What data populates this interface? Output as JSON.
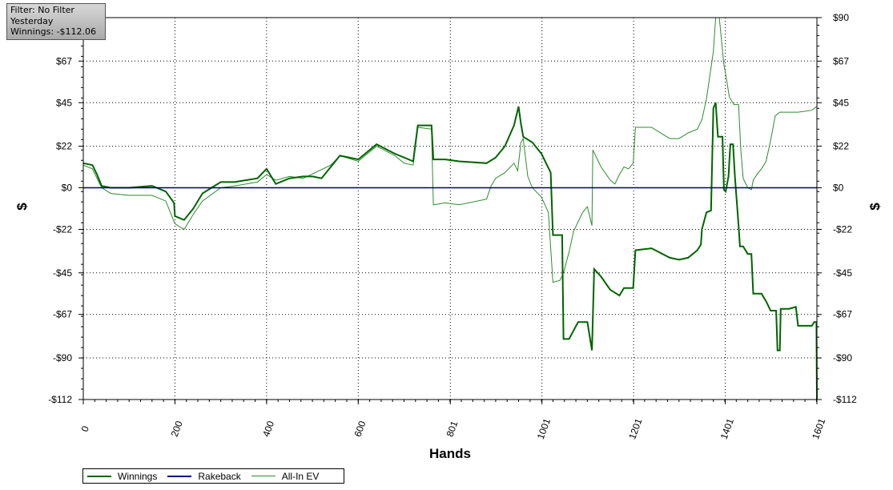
{
  "filter_box": {
    "line1": "Filter: No Filter",
    "line2": "Yesterday",
    "line3": "Winnings: -$112.06"
  },
  "chart_data": {
    "type": "line",
    "xlabel": "Hands",
    "ylabel": "$",
    "ylim": [
      -112,
      90
    ],
    "xlim": [
      0,
      1601
    ],
    "x_ticks": [
      0,
      200,
      400,
      600,
      801,
      1001,
      1201,
      1401,
      1601
    ],
    "y_ticks": [
      {
        "value": 90,
        "label": "$90"
      },
      {
        "value": 67,
        "label": "$67"
      },
      {
        "value": 45,
        "label": "$45"
      },
      {
        "value": 22,
        "label": "$22"
      },
      {
        "value": 0,
        "label": "$0"
      },
      {
        "value": -22,
        "label": "-$22"
      },
      {
        "value": -45,
        "label": "-$45"
      },
      {
        "value": -67,
        "label": "-$67"
      },
      {
        "value": -90,
        "label": "-$90"
      },
      {
        "value": -112,
        "label": "-$112"
      }
    ],
    "grid": true,
    "legend_position": "bottom-left",
    "series": [
      {
        "name": "Winnings",
        "color": "#006400",
        "width": 2,
        "points": [
          [
            0,
            13
          ],
          [
            20,
            12
          ],
          [
            30,
            7
          ],
          [
            40,
            1
          ],
          [
            60,
            0
          ],
          [
            100,
            0
          ],
          [
            150,
            1
          ],
          [
            180,
            -2
          ],
          [
            198,
            -8
          ],
          [
            200,
            -15
          ],
          [
            220,
            -17
          ],
          [
            240,
            -11
          ],
          [
            260,
            -3
          ],
          [
            300,
            3
          ],
          [
            330,
            3
          ],
          [
            380,
            5
          ],
          [
            400,
            10
          ],
          [
            420,
            2
          ],
          [
            450,
            5
          ],
          [
            480,
            6
          ],
          [
            500,
            6
          ],
          [
            520,
            5
          ],
          [
            540,
            11
          ],
          [
            560,
            17
          ],
          [
            600,
            15
          ],
          [
            640,
            23
          ],
          [
            680,
            18
          ],
          [
            700,
            16
          ],
          [
            720,
            14
          ],
          [
            730,
            33
          ],
          [
            760,
            33
          ],
          [
            764,
            15
          ],
          [
            790,
            15
          ],
          [
            820,
            14
          ],
          [
            880,
            13
          ],
          [
            900,
            16
          ],
          [
            920,
            22
          ],
          [
            940,
            33
          ],
          [
            950,
            43
          ],
          [
            955,
            34
          ],
          [
            960,
            27
          ],
          [
            980,
            24
          ],
          [
            1000,
            18
          ],
          [
            1020,
            8
          ],
          [
            1025,
            -25
          ],
          [
            1045,
            -25
          ],
          [
            1048,
            -80
          ],
          [
            1060,
            -80
          ],
          [
            1080,
            -71
          ],
          [
            1100,
            -71
          ],
          [
            1110,
            -86
          ],
          [
            1115,
            -43
          ],
          [
            1130,
            -47
          ],
          [
            1150,
            -54
          ],
          [
            1170,
            -57
          ],
          [
            1180,
            -53
          ],
          [
            1200,
            -53
          ],
          [
            1205,
            -33
          ],
          [
            1240,
            -32
          ],
          [
            1280,
            -37
          ],
          [
            1300,
            -38
          ],
          [
            1320,
            -37
          ],
          [
            1340,
            -33
          ],
          [
            1348,
            -30
          ],
          [
            1350,
            -22
          ],
          [
            1360,
            -13
          ],
          [
            1370,
            -12
          ],
          [
            1375,
            42
          ],
          [
            1380,
            45
          ],
          [
            1385,
            27
          ],
          [
            1395,
            27
          ],
          [
            1398,
            -1
          ],
          [
            1402,
            -2
          ],
          [
            1408,
            6
          ],
          [
            1412,
            23
          ],
          [
            1418,
            23
          ],
          [
            1422,
            6
          ],
          [
            1430,
            -20
          ],
          [
            1433,
            -31
          ],
          [
            1440,
            -31
          ],
          [
            1450,
            -35
          ],
          [
            1458,
            -35
          ],
          [
            1462,
            -56
          ],
          [
            1480,
            -56
          ],
          [
            1490,
            -60
          ],
          [
            1500,
            -65
          ],
          [
            1512,
            -65
          ],
          [
            1515,
            -86
          ],
          [
            1520,
            -86
          ],
          [
            1522,
            -64
          ],
          [
            1540,
            -64
          ],
          [
            1555,
            -63
          ],
          [
            1560,
            -73
          ],
          [
            1590,
            -73
          ],
          [
            1595,
            -71
          ],
          [
            1600,
            -71
          ],
          [
            1601,
            -112
          ]
        ]
      },
      {
        "name": "Rakeback",
        "color": "#000080",
        "width": 1.5,
        "points": [
          [
            0,
            0
          ],
          [
            1601,
            0
          ]
        ]
      },
      {
        "name": "All-In EV",
        "color": "#2e8b2e",
        "width": 1,
        "points": [
          [
            0,
            12
          ],
          [
            20,
            10
          ],
          [
            40,
            0
          ],
          [
            60,
            -3
          ],
          [
            100,
            -4
          ],
          [
            150,
            -4
          ],
          [
            180,
            -7
          ],
          [
            200,
            -19
          ],
          [
            220,
            -22
          ],
          [
            240,
            -14
          ],
          [
            260,
            -7
          ],
          [
            300,
            0
          ],
          [
            330,
            1
          ],
          [
            380,
            3
          ],
          [
            400,
            7
          ],
          [
            420,
            4
          ],
          [
            450,
            6
          ],
          [
            480,
            5
          ],
          [
            540,
            12
          ],
          [
            560,
            17
          ],
          [
            600,
            14
          ],
          [
            640,
            22
          ],
          [
            680,
            17
          ],
          [
            700,
            13
          ],
          [
            720,
            12
          ],
          [
            730,
            32
          ],
          [
            760,
            31
          ],
          [
            764,
            -9
          ],
          [
            790,
            -8
          ],
          [
            820,
            -9
          ],
          [
            880,
            -6
          ],
          [
            890,
            1
          ],
          [
            900,
            5
          ],
          [
            920,
            8
          ],
          [
            940,
            13
          ],
          [
            948,
            9
          ],
          [
            955,
            24
          ],
          [
            960,
            26
          ],
          [
            970,
            6
          ],
          [
            980,
            0
          ],
          [
            1000,
            -5
          ],
          [
            1015,
            -13
          ],
          [
            1025,
            -50
          ],
          [
            1040,
            -49
          ],
          [
            1048,
            -45
          ],
          [
            1060,
            -34
          ],
          [
            1070,
            -23
          ],
          [
            1090,
            -13
          ],
          [
            1100,
            -10
          ],
          [
            1110,
            -20
          ],
          [
            1112,
            20
          ],
          [
            1130,
            11
          ],
          [
            1150,
            4
          ],
          [
            1160,
            2
          ],
          [
            1170,
            7
          ],
          [
            1180,
            11
          ],
          [
            1190,
            10
          ],
          [
            1200,
            13
          ],
          [
            1205,
            32
          ],
          [
            1240,
            32
          ],
          [
            1280,
            26
          ],
          [
            1300,
            26
          ],
          [
            1320,
            29
          ],
          [
            1340,
            31
          ],
          [
            1350,
            36
          ],
          [
            1360,
            47
          ],
          [
            1375,
            72
          ],
          [
            1380,
            90
          ],
          [
            1388,
            90
          ],
          [
            1398,
            65
          ],
          [
            1402,
            60
          ],
          [
            1410,
            48
          ],
          [
            1420,
            44
          ],
          [
            1430,
            44
          ],
          [
            1435,
            20
          ],
          [
            1440,
            5
          ],
          [
            1450,
            0
          ],
          [
            1458,
            -1
          ],
          [
            1462,
            4
          ],
          [
            1470,
            7
          ],
          [
            1480,
            10
          ],
          [
            1490,
            14
          ],
          [
            1500,
            25
          ],
          [
            1510,
            38
          ],
          [
            1520,
            40
          ],
          [
            1560,
            40
          ],
          [
            1590,
            41
          ],
          [
            1600,
            43
          ]
        ]
      }
    ]
  },
  "legend": {
    "items": [
      {
        "label": "Winnings",
        "color": "#006400"
      },
      {
        "label": "Rakeback",
        "color": "#000080"
      },
      {
        "label": "All-In EV",
        "color": "#2e8b2e"
      }
    ]
  }
}
